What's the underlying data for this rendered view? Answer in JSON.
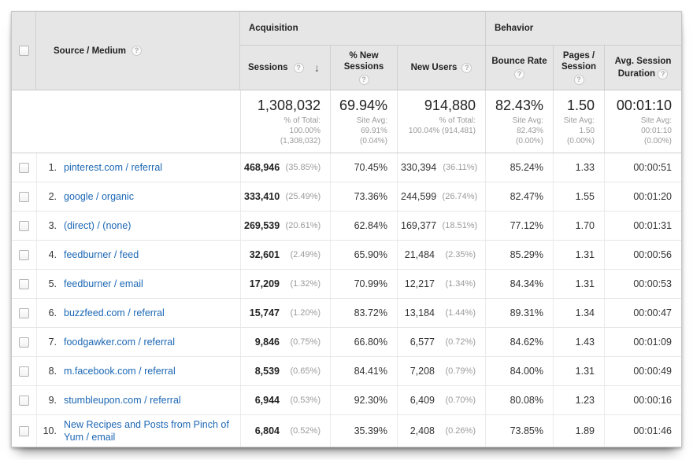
{
  "colors": {
    "link": "#1c67b4",
    "header_bg": "#e6e6e6",
    "muted": "#9b9b9b",
    "text": "#333333"
  },
  "icons": {
    "help": "?",
    "sort_desc": "↓"
  },
  "table": {
    "groups": {
      "acquisition": "Acquisition",
      "behavior": "Behavior"
    },
    "columns": {
      "source_medium": "Source / Medium",
      "sessions": "Sessions",
      "pct_new_sessions": "% New Sessions",
      "new_users": "New Users",
      "bounce_rate": "Bounce Rate",
      "pages_session": "Pages / Session",
      "avg_session_duration": "Avg. Session Duration"
    },
    "totals": {
      "sessions": {
        "value": "1,308,032",
        "sub": [
          "% of Total:",
          "100.00%",
          "(1,308,032)"
        ]
      },
      "pct_new_sessions": {
        "value": "69.94%",
        "sub": [
          "Site Avg:",
          "69.91%",
          "(0.04%)"
        ]
      },
      "new_users": {
        "value": "914,880",
        "sub": [
          "% of Total:",
          "100.04% (914,481)",
          ""
        ]
      },
      "bounce_rate": {
        "value": "82.43%",
        "sub": [
          "Site Avg:",
          "82.43%",
          "(0.00%)"
        ]
      },
      "pages_session": {
        "value": "1.50",
        "sub": [
          "Site Avg:",
          "1.50",
          "(0.00%)"
        ]
      },
      "avg_session_duration": {
        "value": "00:01:10",
        "sub": [
          "Site Avg:",
          "00:01:10",
          "(0.00%)"
        ]
      }
    },
    "rows": [
      {
        "rank": "1.",
        "source": "pinterest.com / referral",
        "sessions": "468,946",
        "sessions_pct": "(35.85%)",
        "pct_new": "70.45%",
        "new_users": "330,394",
        "new_users_pct": "(36.11%)",
        "bounce": "85.24%",
        "pages": "1.33",
        "duration": "00:00:51"
      },
      {
        "rank": "2.",
        "source": "google / organic",
        "sessions": "333,410",
        "sessions_pct": "(25.49%)",
        "pct_new": "73.36%",
        "new_users": "244,599",
        "new_users_pct": "(26.74%)",
        "bounce": "82.47%",
        "pages": "1.55",
        "duration": "00:01:20"
      },
      {
        "rank": "3.",
        "source": "(direct) / (none)",
        "sessions": "269,539",
        "sessions_pct": "(20.61%)",
        "pct_new": "62.84%",
        "new_users": "169,377",
        "new_users_pct": "(18.51%)",
        "bounce": "77.12%",
        "pages": "1.70",
        "duration": "00:01:31"
      },
      {
        "rank": "4.",
        "source": "feedburner / feed",
        "sessions": "32,601",
        "sessions_pct": "(2.49%)",
        "pct_new": "65.90%",
        "new_users": "21,484",
        "new_users_pct": "(2.35%)",
        "bounce": "85.29%",
        "pages": "1.31",
        "duration": "00:00:56"
      },
      {
        "rank": "5.",
        "source": "feedburner / email",
        "sessions": "17,209",
        "sessions_pct": "(1.32%)",
        "pct_new": "70.99%",
        "new_users": "12,217",
        "new_users_pct": "(1.34%)",
        "bounce": "84.34%",
        "pages": "1.31",
        "duration": "00:00:53"
      },
      {
        "rank": "6.",
        "source": "buzzfeed.com / referral",
        "sessions": "15,747",
        "sessions_pct": "(1.20%)",
        "pct_new": "83.72%",
        "new_users": "13,184",
        "new_users_pct": "(1.44%)",
        "bounce": "89.31%",
        "pages": "1.34",
        "duration": "00:00:47"
      },
      {
        "rank": "7.",
        "source": "foodgawker.com / referral",
        "sessions": "9,846",
        "sessions_pct": "(0.75%)",
        "pct_new": "66.80%",
        "new_users": "6,577",
        "new_users_pct": "(0.72%)",
        "bounce": "84.62%",
        "pages": "1.43",
        "duration": "00:01:09"
      },
      {
        "rank": "8.",
        "source": "m.facebook.com / referral",
        "sessions": "8,539",
        "sessions_pct": "(0.65%)",
        "pct_new": "84.41%",
        "new_users": "7,208",
        "new_users_pct": "(0.79%)",
        "bounce": "84.00%",
        "pages": "1.31",
        "duration": "00:00:49"
      },
      {
        "rank": "9.",
        "source": "stumbleupon.com / referral",
        "sessions": "6,944",
        "sessions_pct": "(0.53%)",
        "pct_new": "92.30%",
        "new_users": "6,409",
        "new_users_pct": "(0.70%)",
        "bounce": "80.08%",
        "pages": "1.23",
        "duration": "00:00:16"
      },
      {
        "rank": "10.",
        "source": "New Recipes and Posts from Pinch of Yum / email",
        "sessions": "6,804",
        "sessions_pct": "(0.52%)",
        "pct_new": "35.39%",
        "new_users": "2,408",
        "new_users_pct": "(0.26%)",
        "bounce": "73.85%",
        "pages": "1.89",
        "duration": "00:01:46"
      }
    ]
  }
}
